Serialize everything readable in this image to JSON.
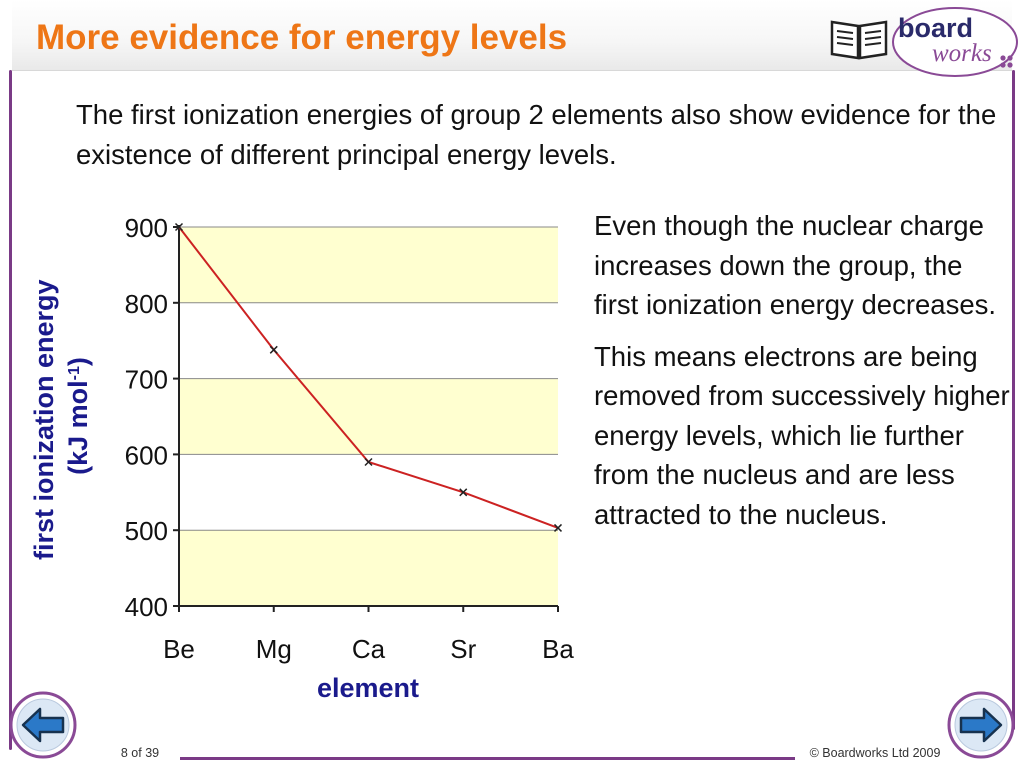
{
  "slide": {
    "title": "More evidence for energy levels",
    "intro": "The first ionization energies of group 2 elements also show evidence for the existence of different principal energy levels.",
    "side_paragraphs": [
      "Even though the nuclear charge increases down the group, the first ionization energy decreases.",
      "This means electrons are being removed from successively higher energy levels, which lie further from the nucleus and are less attracted to the nucleus."
    ]
  },
  "logo": {
    "top_word": "board",
    "bottom_word": "works"
  },
  "footer": {
    "page": "8 of 39",
    "copyright": "© Boardworks Ltd 2009"
  },
  "colors": {
    "title": "#ee7616",
    "axis_title": "#1a1a8c",
    "series_line": "#cc2222",
    "plot_band": "#ffffd0",
    "frame": "#7a3a86"
  },
  "chart_data": {
    "type": "line",
    "categories": [
      "Be",
      "Mg",
      "Ca",
      "Sr",
      "Ba"
    ],
    "series": [
      {
        "values": [
          900,
          738,
          590,
          550,
          503
        ]
      }
    ],
    "xlabel": "element",
    "ylabel": "first ionization energy",
    "ylabel_unit_prefix": "(kJ mol",
    "ylabel_unit_sup": "-1",
    "ylabel_unit_suffix": ")",
    "ylim": [
      400,
      900
    ],
    "yticks": [
      400,
      500,
      600,
      700,
      800,
      900
    ],
    "grid": true,
    "alternating_bands": true,
    "legend": "none"
  }
}
